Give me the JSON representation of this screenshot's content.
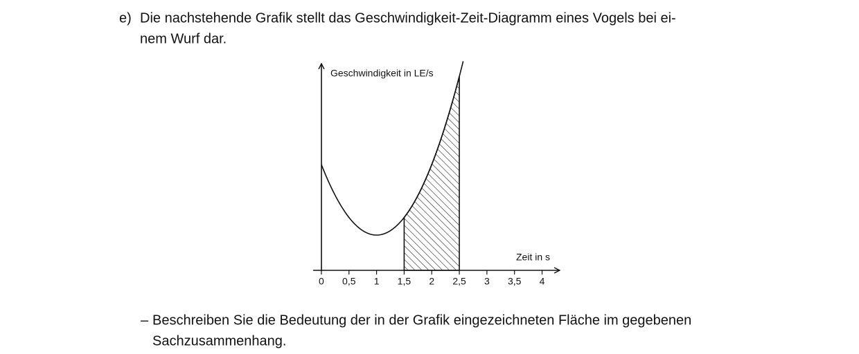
{
  "task": {
    "label": "e)",
    "lines": [
      "Die nachstehende Grafik stellt das Geschwindigkeit-Zeit-Diagramm eines Vogels bei ei-",
      "nem Wurf dar."
    ]
  },
  "figure": {
    "y_axis_label": "Geschwindigkeit in LE/s",
    "x_axis_label": "Zeit in s",
    "xlim": [
      -0.15,
      4.32
    ],
    "xticks": [
      0,
      {
        "value": 0.5,
        "label": "0,5"
      },
      1,
      {
        "value": 1.5,
        "label": "1,5"
      },
      2,
      {
        "value": 2.5,
        "label": "2,5"
      },
      3,
      {
        "value": 3.5,
        "label": "3,5"
      },
      4
    ],
    "shaded_interval": [
      1.5,
      2.5
    ]
  },
  "question": {
    "bullet": "–",
    "lines": [
      "Beschreiben Sie die Bedeutung der in der Grafik eingezeichneten Fläche im gegebenen",
      "Sachzusammenhang."
    ]
  }
}
